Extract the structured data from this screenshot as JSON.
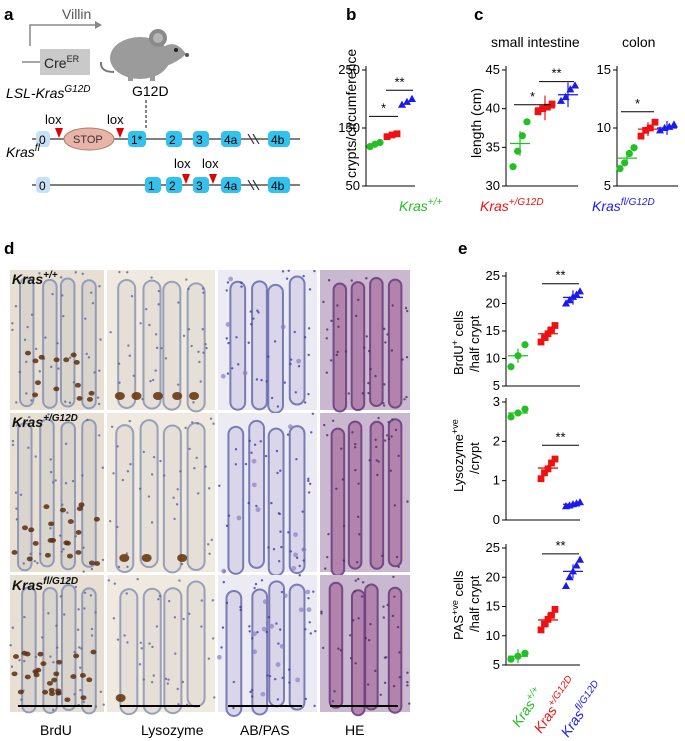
{
  "panels": {
    "a": {
      "letter": "a",
      "promoter": "Villin",
      "cre_box": "Cre",
      "cre_sup": "ER",
      "allele1_label": "LSL-Kras",
      "allele1_sup": "G12D",
      "mutation": "G12D",
      "lox": "lox",
      "stop": "STOP",
      "allele2_label": "Kras",
      "allele2_sup": "fl",
      "exons1": [
        "0",
        "1*",
        "2",
        "3",
        "4a",
        "4b"
      ],
      "exons2": [
        "0",
        "1",
        "2",
        "3",
        "4a",
        "4b"
      ]
    },
    "b": {
      "letter": "b",
      "ylabel": "crypts/circumference",
      "yticks": [
        "50",
        "150",
        "250"
      ]
    },
    "c": {
      "letter": "c",
      "title_si": "small intestine",
      "title_colon": "colon",
      "ylabel": "length (cm)",
      "yticks_si": [
        "30",
        "35",
        "40",
        "45"
      ],
      "yticks_colon": [
        "5",
        "10",
        "15"
      ]
    },
    "genotypes": [
      {
        "base": "Kras",
        "sup": "+/+",
        "color": "#22c022"
      },
      {
        "base": "Kras",
        "sup": "+/G12D",
        "color": "#ee1111"
      },
      {
        "base": "Kras",
        "sup": "fl/G12D",
        "color": "#1a1aee"
      }
    ],
    "d": {
      "letter": "d",
      "rows": [
        {
          "base": "Kras",
          "sup": "+/+"
        },
        {
          "base": "Kras",
          "sup": "+/G12D"
        },
        {
          "base": "Kras",
          "sup": "fl/G12D"
        }
      ],
      "columns": [
        "BrdU",
        "Lysozyme",
        "AB/PAS",
        "HE"
      ]
    },
    "e": {
      "letter": "e",
      "ylabels": [
        {
          "l1": "BrdU",
          "l1_sup": "+",
          "l1_rest": " cells",
          "l2": "/half crypt"
        },
        {
          "l1": "Lysozyme",
          "l1_sup": "+ve",
          "l1_rest": "",
          "l2": "/crypt"
        },
        {
          "l1": "PAS",
          "l1_sup": "+ve",
          "l1_rest": " cells",
          "l2": "/half crypt"
        }
      ],
      "yticks": [
        [
          "5",
          "10",
          "15",
          "20",
          "25"
        ],
        [
          "0",
          "1",
          "2",
          "3"
        ],
        [
          "5",
          "10",
          "15",
          "20",
          "25"
        ]
      ]
    },
    "sig": {
      "one": "*",
      "two": "**"
    }
  },
  "chart_data": [
    {
      "type": "scatter",
      "panel": "b",
      "ylabel": "crypts/circumference",
      "categories": [
        "Kras+/+",
        "Kras+/G12D",
        "Kras fl/G12D"
      ],
      "ylim": [
        50,
        250
      ],
      "series": [
        {
          "name": "Kras+/+",
          "values": [
            118,
            122,
            125
          ]
        },
        {
          "name": "Kras+/G12D",
          "values": [
            135,
            138,
            140
          ]
        },
        {
          "name": "Kras fl/G12D",
          "values": [
            190,
            195,
            200
          ]
        }
      ],
      "significance": [
        "*",
        "**"
      ]
    },
    {
      "type": "scatter",
      "panel": "c-small-intestine",
      "title": "small intestine",
      "ylabel": "length (cm)",
      "ylim": [
        30,
        45
      ],
      "series": [
        {
          "name": "Kras+/+",
          "values": [
            32.5,
            34.5,
            36.5,
            38.3
          ],
          "mean": 35.5
        },
        {
          "name": "Kras+/G12D",
          "values": [
            39.6,
            40.0,
            40.2,
            40.6
          ],
          "mean": 40.1
        },
        {
          "name": "Kras fl/G12D",
          "values": [
            41.0,
            41.5,
            42.5,
            43.0
          ],
          "mean": 41.8
        }
      ],
      "significance": [
        "*",
        "**"
      ]
    },
    {
      "type": "scatter",
      "panel": "c-colon",
      "title": "colon",
      "ylim": [
        5,
        15
      ],
      "series": [
        {
          "name": "Kras+/+",
          "values": [
            6.5,
            7.0,
            7.8,
            8.3
          ],
          "mean": 7.4
        },
        {
          "name": "Kras+/G12D",
          "values": [
            9.3,
            9.8,
            10.0,
            10.5
          ],
          "mean": 9.9
        },
        {
          "name": "Kras fl/G12D",
          "values": [
            9.8,
            10.0,
            10.1,
            10.3
          ],
          "mean": 10.0
        }
      ],
      "significance": [
        "*"
      ]
    },
    {
      "type": "scatter",
      "panel": "e-brdu",
      "ylabel": "BrdU+ cells /half crypt",
      "ylim": [
        5,
        25
      ],
      "series": [
        {
          "name": "Kras+/+",
          "values": [
            8.5,
            10.5,
            12.5
          ],
          "mean": 10.5
        },
        {
          "name": "Kras+/G12D",
          "values": [
            13.0,
            13.8,
            14.5,
            15.2,
            16.0
          ],
          "mean": 14.5
        },
        {
          "name": "Kras fl/G12D",
          "values": [
            20.0,
            20.6,
            21.2,
            21.6,
            22.2
          ],
          "mean": 21.1
        }
      ],
      "significance": [
        "**"
      ]
    },
    {
      "type": "scatter",
      "panel": "e-lysozyme",
      "ylabel": "Lysozyme+ve /crypt",
      "ylim": [
        0,
        3
      ],
      "series": [
        {
          "name": "Kras+/+",
          "values": [
            2.62,
            2.72,
            2.82
          ],
          "mean": 2.72
        },
        {
          "name": "Kras+/G12D",
          "values": [
            1.05,
            1.2,
            1.3,
            1.45,
            1.55
          ],
          "mean": 1.32
        },
        {
          "name": "Kras fl/G12D",
          "values": [
            0.35,
            0.37,
            0.4,
            0.42,
            0.45
          ],
          "mean": 0.4
        }
      ],
      "significance": [
        "**"
      ]
    },
    {
      "type": "scatter",
      "panel": "e-pas",
      "ylabel": "PAS+ve cells /half crypt",
      "ylim": [
        5,
        25
      ],
      "series": [
        {
          "name": "Kras+/+",
          "values": [
            6.0,
            6.5,
            7.0
          ],
          "mean": 6.5
        },
        {
          "name": "Kras+/G12D",
          "values": [
            11.0,
            12.0,
            12.8,
            13.5,
            14.5
          ],
          "mean": 12.7
        },
        {
          "name": "Kras fl/G12D",
          "values": [
            18.5,
            20.0,
            21.0,
            22.0,
            23.0
          ],
          "mean": 21.0
        }
      ],
      "significance": [
        "**"
      ]
    }
  ]
}
